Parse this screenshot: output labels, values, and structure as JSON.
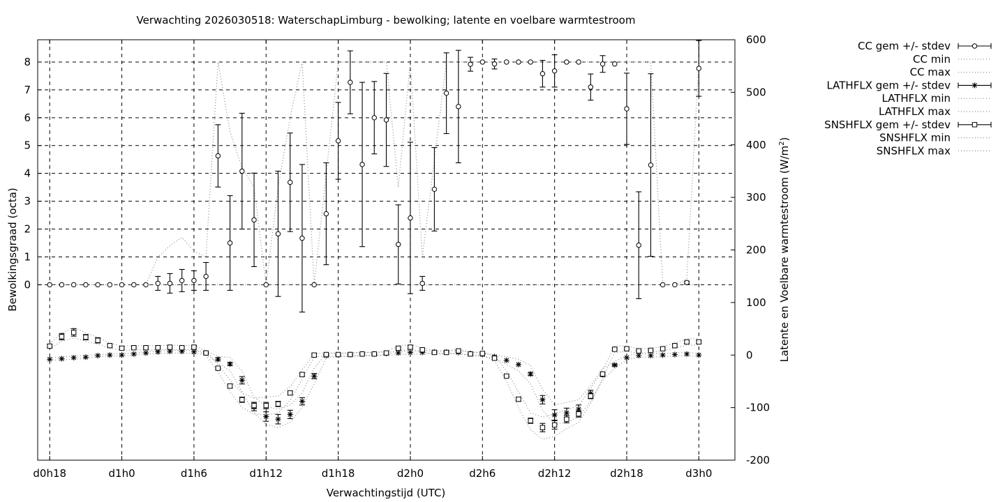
{
  "chart_data": {
    "type": "line",
    "title": "Verwachting 2026030518: WaterschapLimburg - bewolking; latente en voelbare warmtestroom",
    "xlabel": "Verwachtingstijd (UTC)",
    "ylabel": "Bewolkingsgraad (octa)",
    "y2label_main": "Latente en Voelbare warmtestroom (W/m",
    "y2label_sup": "2",
    "y2label_end": ")",
    "x_range_hours": [
      -1,
      57
    ],
    "x_ticks": [
      {
        "h": 0,
        "label": "d0h18"
      },
      {
        "h": 6,
        "label": "d1h0"
      },
      {
        "h": 12,
        "label": "d1h6"
      },
      {
        "h": 18,
        "label": "d1h12"
      },
      {
        "h": 24,
        "label": "d1h18"
      },
      {
        "h": 30,
        "label": "d2h0"
      },
      {
        "h": 36,
        "label": "d2h6"
      },
      {
        "h": 42,
        "label": "d2h12"
      },
      {
        "h": 48,
        "label": "d2h18"
      },
      {
        "h": 54,
        "label": "d3h0"
      }
    ],
    "y_ticks": [
      "0",
      "1",
      "2",
      "3",
      "4",
      "5",
      "6",
      "7",
      "8"
    ],
    "y_range": [
      -6.3,
      8.8
    ],
    "y2_ticks": [
      "-200",
      "-100",
      "0",
      "100",
      "200",
      "300",
      "400",
      "500",
      "600"
    ],
    "y2_range": [
      -200,
      600
    ],
    "grid": true,
    "legend_position": "outside-right",
    "legend": [
      {
        "label": "CC gem +/- stdev",
        "style": "errbar-circle"
      },
      {
        "label": "CC min",
        "style": "dotted"
      },
      {
        "label": "CC max",
        "style": "dotted"
      },
      {
        "label": "LATHFLX gem +/- stdev",
        "style": "errbar-star"
      },
      {
        "label": "LATHFLX min",
        "style": "dotted-sparse"
      },
      {
        "label": "LATHFLX max",
        "style": "dotted"
      },
      {
        "label": "SNSHFLX gem +/- stdev",
        "style": "errbar-square"
      },
      {
        "label": "SNSHFLX min",
        "style": "dotted"
      },
      {
        "label": "SNSHFLX max",
        "style": "dotted"
      }
    ],
    "x_hours": [
      0,
      1,
      2,
      3,
      4,
      5,
      6,
      7,
      8,
      9,
      10,
      11,
      12,
      13,
      14,
      15,
      16,
      17,
      18,
      19,
      20,
      21,
      22,
      23,
      24,
      25,
      26,
      27,
      28,
      29,
      30,
      31,
      32,
      33,
      34,
      35,
      36,
      37,
      38,
      39,
      40,
      41,
      42,
      43,
      44,
      45,
      46,
      47,
      48,
      49,
      50,
      51,
      52,
      53,
      54
    ],
    "series": [
      {
        "name": "CC gem +/- stdev",
        "axis": "y1",
        "mean": [
          0,
          0,
          0,
          0,
          0,
          0,
          0,
          0,
          0,
          0.05,
          0.05,
          0.15,
          0.15,
          0.3,
          4.63,
          1.5,
          4.08,
          2.33,
          0,
          1.83,
          3.68,
          1.67,
          0,
          2.55,
          5.17,
          7.27,
          4.32,
          6,
          5.92,
          1.45,
          2.4,
          0.05,
          3.43,
          6.88,
          6.4,
          7.92,
          8,
          7.93,
          8,
          8,
          8,
          7.58,
          7.68,
          8,
          8,
          7.1,
          7.93,
          7.93,
          6.32,
          1.42,
          4.3,
          0,
          0,
          0.08,
          7.77
        ],
        "stdev": [
          0,
          0,
          0,
          0,
          0,
          0,
          0,
          0,
          0,
          0.25,
          0.35,
          0.4,
          0.35,
          0.5,
          1.12,
          1.7,
          2.08,
          1.68,
          0,
          2.25,
          1.77,
          2.65,
          0,
          1.83,
          1.38,
          1.13,
          2.95,
          1.3,
          1.67,
          1.42,
          2.72,
          0.25,
          1.5,
          1.45,
          2.02,
          0.25,
          0,
          0.18,
          0,
          0,
          0,
          0.48,
          0.58,
          0,
          0,
          0.47,
          0.3,
          0,
          1.28,
          1.92,
          3.28,
          0,
          0,
          0.05,
          1
        ]
      },
      {
        "name": "CC min",
        "axis": "y1",
        "values": [
          0,
          0,
          0,
          0,
          0,
          0,
          0,
          0,
          0,
          0,
          0,
          0,
          0,
          0,
          0,
          0,
          0,
          0,
          0,
          0,
          0,
          0,
          0,
          0,
          0,
          0,
          0,
          0,
          0,
          0,
          0,
          0,
          0,
          0,
          0,
          0,
          0,
          0,
          0,
          0,
          0,
          0,
          0,
          0,
          0,
          0,
          0,
          0,
          0,
          0,
          0,
          0,
          0,
          0,
          0
        ]
      },
      {
        "name": "CC max",
        "axis": "y1",
        "values": [
          0,
          0,
          0,
          0,
          0,
          0,
          0,
          0,
          0,
          1,
          1.4,
          1.7,
          1.2,
          1.0,
          8,
          5.5,
          4.2,
          3.5,
          0,
          3.5,
          6,
          8,
          0,
          4,
          8,
          8,
          8,
          8,
          8,
          3.5,
          8,
          1,
          4.5,
          8,
          8,
          8,
          8,
          8,
          8,
          8,
          8,
          8,
          8,
          8,
          8,
          8,
          8,
          8,
          8,
          8,
          8,
          0,
          0,
          0.2,
          8
        ]
      },
      {
        "name": "LATHFLX gem +/- stdev",
        "axis": "y2",
        "mean": [
          -8,
          -7,
          -5,
          -4,
          -1,
          0,
          0,
          2,
          4,
          6,
          7,
          7,
          6,
          4,
          -8,
          -17,
          -48,
          -98,
          -117,
          -122,
          -113,
          -88,
          -40,
          -1,
          0,
          1,
          2,
          2,
          3,
          4,
          5,
          5,
          6,
          6,
          5,
          3,
          1,
          -3,
          -10,
          -18,
          -36,
          -85,
          -114,
          -110,
          -103,
          -73,
          -37,
          -19,
          -5,
          -1,
          -1,
          0,
          1,
          2,
          0
        ],
        "stdev": [
          0,
          0,
          0,
          0,
          0,
          0,
          0,
          0,
          0,
          0,
          0,
          0,
          0,
          0,
          3,
          3,
          7,
          8,
          9,
          9,
          8,
          7,
          5,
          1,
          0,
          0,
          0,
          0,
          0,
          0,
          0,
          0,
          0,
          0,
          0,
          0,
          0,
          0,
          0,
          0,
          3,
          8,
          10,
          9,
          8,
          6,
          4,
          2,
          0,
          0,
          0,
          0,
          0,
          0,
          0
        ],
        "min_values": [
          -10,
          -9,
          -8,
          -6,
          -3,
          -2,
          -2,
          0,
          2,
          3,
          4,
          4,
          3,
          1,
          -15,
          -30,
          -70,
          -110,
          -132,
          -138,
          -128,
          -100,
          -55,
          -6,
          -3,
          -2,
          -1,
          -1,
          0,
          1,
          2,
          2,
          3,
          3,
          2,
          0,
          -2,
          -6,
          -18,
          -30,
          -55,
          -105,
          -132,
          -128,
          -118,
          -88,
          -48,
          -25,
          -9,
          -4,
          -4,
          -3,
          -2,
          -1,
          -3
        ],
        "max_values": [
          -5,
          -4,
          -2,
          -1,
          1,
          2,
          3,
          4,
          6,
          8,
          9,
          9,
          9,
          7,
          -2,
          -5,
          -30,
          -80,
          -98,
          -103,
          -95,
          -72,
          -25,
          3,
          3,
          4,
          5,
          5,
          6,
          7,
          8,
          8,
          8,
          8,
          8,
          6,
          4,
          0,
          -3,
          -8,
          -20,
          -65,
          -95,
          -90,
          -85,
          -58,
          -26,
          -12,
          -1,
          2,
          2,
          3,
          4,
          5,
          3
        ]
      },
      {
        "name": "SNSHFLX gem +/- stdev",
        "axis": "y2",
        "mean": [
          17,
          35,
          43,
          34,
          28,
          18,
          13,
          14,
          14,
          14,
          15,
          14,
          15,
          4,
          -25,
          -59,
          -85,
          -96,
          -96,
          -93,
          -72,
          -37,
          0,
          1,
          1,
          1,
          2,
          2,
          4,
          13,
          15,
          10,
          5,
          5,
          8,
          2,
          3,
          -6,
          -40,
          -84,
          -125,
          -138,
          -133,
          -122,
          -112,
          -78,
          -36,
          11,
          12,
          8,
          9,
          12,
          18,
          25,
          25
        ],
        "stdev": [
          3,
          6,
          7,
          5,
          5,
          3,
          2,
          2,
          2,
          2,
          2,
          2,
          3,
          2,
          2,
          4,
          5,
          6,
          6,
          5,
          4,
          3,
          2,
          1,
          1,
          1,
          1,
          1,
          2,
          2,
          3,
          2,
          1,
          1,
          1,
          1,
          1,
          2,
          2,
          4,
          5,
          8,
          8,
          7,
          6,
          5,
          3,
          2,
          2,
          1,
          1,
          2,
          2,
          3,
          3
        ],
        "min_values": [
          12,
          26,
          33,
          26,
          21,
          13,
          9,
          10,
          10,
          10,
          11,
          10,
          11,
          0,
          -32,
          -70,
          -100,
          -112,
          -114,
          -110,
          -86,
          -46,
          -3,
          -2,
          -2,
          -2,
          -1,
          -1,
          1,
          9,
          10,
          6,
          2,
          2,
          4,
          -1,
          -1,
          -10,
          -50,
          -100,
          -142,
          -160,
          -155,
          -140,
          -128,
          -92,
          -44,
          5,
          7,
          4,
          5,
          8,
          13,
          19,
          19
        ],
        "max_values": [
          22,
          42,
          53,
          42,
          34,
          23,
          17,
          18,
          18,
          18,
          19,
          18,
          19,
          8,
          -18,
          -48,
          -72,
          -82,
          -80,
          -78,
          -60,
          -28,
          3,
          4,
          4,
          4,
          5,
          5,
          7,
          17,
          20,
          14,
          8,
          8,
          12,
          5,
          6,
          -2,
          -30,
          -70,
          -110,
          -118,
          -112,
          -104,
          -96,
          -64,
          -28,
          17,
          17,
          12,
          13,
          16,
          23,
          31,
          31
        ]
      }
    ]
  }
}
